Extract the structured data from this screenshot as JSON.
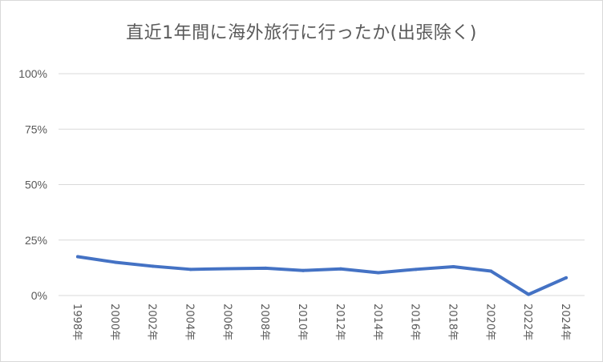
{
  "chart_data": {
    "type": "line",
    "title": "直近1年間に海外旅行に行ったか(出張除く)",
    "xlabel": "",
    "ylabel": "",
    "categories": [
      "1998年",
      "2000年",
      "2002年",
      "2004年",
      "2006年",
      "2008年",
      "2010年",
      "2012年",
      "2014年",
      "2016年",
      "2018年",
      "2020年",
      "2022年",
      "2024年"
    ],
    "y_ticks": [
      "0%",
      "25%",
      "50%",
      "75%",
      "100%"
    ],
    "ylim": [
      0,
      100
    ],
    "grid": true,
    "legend": "none",
    "series": [
      {
        "values": [
          17.5,
          15.0,
          13.2,
          11.8,
          12.1,
          12.3,
          11.3,
          12.0,
          10.3,
          11.8,
          13.0,
          11.0,
          0.5,
          8.0
        ],
        "color": "#4472c4"
      }
    ]
  }
}
